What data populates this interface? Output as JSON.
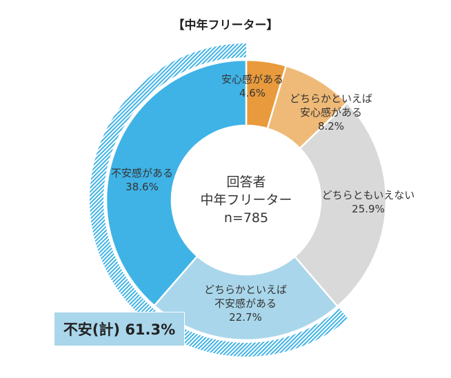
{
  "title": "【中年フリーター】",
  "center": {
    "line1": "回答者",
    "line2": "中年フリーター",
    "line3": "n=785"
  },
  "total_label": "不安(計) 61.3%",
  "labels": [
    {
      "name": "安心感がある",
      "value": "4.6%"
    },
    {
      "name1": "どちらかといえば",
      "name2": "安心感がある",
      "value": "8.2%"
    },
    {
      "name": "どちらともいえない",
      "value": "25.9%"
    },
    {
      "name1": "どちらかといえば",
      "name2": "不安感がある",
      "value": "22.7%"
    },
    {
      "name": "不安感がある",
      "value": "38.6%"
    }
  ],
  "colors": {
    "anshin": "#e99a3c",
    "yaya_anshin": "#efba77",
    "neutral": "#d9d9d9",
    "yaya_fuan": "#a9d6ea",
    "fuan": "#3fb3e6",
    "hatch": "#3fb3e6",
    "total_box": "#a9d6ea"
  },
  "chart_data": {
    "type": "pie",
    "subtype": "donut",
    "title": "【中年フリーター】",
    "center_text": [
      "回答者",
      "中年フリーター",
      "n=785"
    ],
    "categories": [
      "安心感がある",
      "どちらかといえば安心感がある",
      "どちらともいえない",
      "どちらかといえば不安感がある",
      "不安感がある"
    ],
    "values": [
      4.6,
      8.2,
      25.9,
      22.7,
      38.6
    ],
    "unit": "%",
    "annotations": [
      {
        "text": "不安(計) 61.3%",
        "covers": [
          "どちらかといえば不安感がある",
          "不安感がある"
        ],
        "style": "hatched outer arc"
      }
    ],
    "start_angle": "12 o'clock, clockwise"
  }
}
